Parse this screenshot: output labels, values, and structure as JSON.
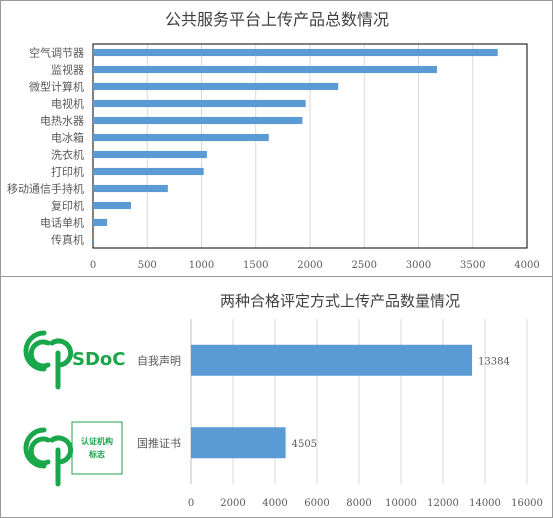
{
  "chart_data": [
    {
      "type": "bar",
      "orientation": "horizontal",
      "title": "公共服务平台上传产品总数情况",
      "categories": [
        "空气调节器",
        "监视器",
        "微型计算机",
        "电视机",
        "电热水器",
        "电冰箱",
        "洗衣机",
        "打印机",
        "移动通信手持机",
        "复印机",
        "电话单机",
        "传真机"
      ],
      "values": [
        3730,
        3170,
        2260,
        1960,
        1930,
        1620,
        1050,
        1020,
        690,
        350,
        130,
        10
      ],
      "xlim": [
        0,
        4000
      ],
      "xticks": [
        0,
        500,
        1000,
        1500,
        2000,
        2500,
        3000,
        3500,
        4000
      ],
      "grid": true,
      "color": "#5b9bd5"
    },
    {
      "type": "bar",
      "orientation": "horizontal",
      "title": "两种合格评定方式上传产品数量情况",
      "categories": [
        "自我声明",
        "国推证书"
      ],
      "values": [
        13384,
        4505
      ],
      "value_labels": [
        "13384",
        "4505"
      ],
      "xlim": [
        0,
        16000
      ],
      "xticks": [
        0,
        2000,
        4000,
        6000,
        8000,
        10000,
        12000,
        14000,
        16000
      ],
      "grid": true,
      "color": "#5b9bd5"
    }
  ],
  "logos": [
    {
      "icon": "ccc-sdoc-logo",
      "text": "SDoC",
      "color": "#1aa64a"
    },
    {
      "icon": "ccc-cert-logo",
      "text_lines": [
        "认证机构",
        "标志"
      ],
      "color": "#1aa64a"
    }
  ]
}
